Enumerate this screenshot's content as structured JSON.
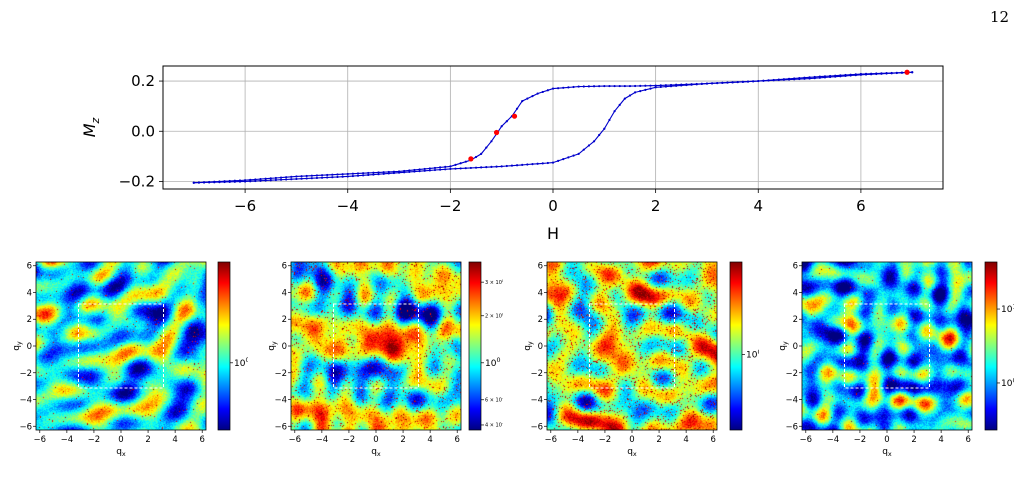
{
  "page": {
    "number": "12"
  },
  "colors": {
    "line": "#0000cc",
    "marker": "#ff0000",
    "grid": "#b0b0b0",
    "dashed_box": "#ffffff"
  },
  "chart_data": [
    {
      "type": "line",
      "title": "",
      "xlabel": "H",
      "ylabel": "M_z",
      "ylabel_main": "M",
      "ylabel_sub": "z",
      "xlim": [
        -7.6,
        7.6
      ],
      "ylim": [
        -0.23,
        0.26
      ],
      "xticks": [
        -6,
        -4,
        -2,
        0,
        2,
        4,
        6
      ],
      "xtick_labels": [
        "−6",
        "−4",
        "−2",
        "0",
        "2",
        "4",
        "6"
      ],
      "yticks": [
        -0.2,
        0.0,
        0.2
      ],
      "ytick_labels": [
        "−0.2",
        "0.0",
        "0.2"
      ],
      "grid": true,
      "series": [
        {
          "branch": "descending",
          "x": [
            7.0,
            6.0,
            5.0,
            4.0,
            3.0,
            2.0,
            1.5,
            1.0,
            0.5,
            0.0,
            -0.3,
            -0.6,
            -0.8,
            -1.0,
            -1.2,
            -1.4,
            -1.6,
            -2.0,
            -3.0,
            -4.0,
            -5.0,
            -6.0,
            -7.0
          ],
          "y": [
            0.235,
            0.228,
            0.215,
            0.2,
            0.19,
            0.182,
            0.18,
            0.18,
            0.178,
            0.17,
            0.15,
            0.12,
            0.06,
            0.02,
            -0.04,
            -0.09,
            -0.115,
            -0.14,
            -0.16,
            -0.17,
            -0.18,
            -0.195,
            -0.205
          ]
        },
        {
          "branch": "ascending",
          "x": [
            -7.0,
            -6.0,
            -5.0,
            -4.0,
            -3.0,
            -2.0,
            -1.0,
            0.0,
            0.5,
            0.8,
            1.0,
            1.2,
            1.4,
            1.6,
            2.0,
            3.0,
            4.0,
            5.0,
            6.0,
            7.0
          ],
          "y": [
            -0.205,
            -0.2,
            -0.19,
            -0.18,
            -0.165,
            -0.15,
            -0.14,
            -0.125,
            -0.09,
            -0.04,
            0.01,
            0.08,
            0.13,
            0.155,
            0.175,
            0.19,
            0.2,
            0.21,
            0.225,
            0.235
          ]
        }
      ],
      "highlight_points": {
        "x": [
          -1.6,
          -1.1,
          -0.75,
          6.9
        ],
        "y": [
          -0.11,
          -0.005,
          0.06,
          0.235
        ]
      }
    },
    {
      "type": "heatmap",
      "xlabel_main": "q",
      "xlabel_sub": "x",
      "ylabel_main": "q",
      "ylabel_sub": "y",
      "xlim": [
        -6.28,
        6.28
      ],
      "ylim": [
        -6.28,
        6.28
      ],
      "ticks": [
        -6,
        -4,
        -2,
        0,
        2,
        4,
        6
      ],
      "tick_labels": [
        "−6",
        "−4",
        "−2",
        "0",
        "2",
        "4",
        "6"
      ],
      "dashed_box": [
        -3.14,
        3.14
      ],
      "colorbar": {
        "scale": "log",
        "labels": [
          {
            "main": "10",
            "exp": "0",
            "at": 0.6
          }
        ]
      },
      "seed": 11,
      "intensity": 0.35,
      "hot_fraction": 0.01
    },
    {
      "type": "heatmap",
      "xlabel_main": "q",
      "xlabel_sub": "x",
      "ylabel_main": "q",
      "ylabel_sub": "y",
      "xlim": [
        -6.28,
        6.28
      ],
      "ylim": [
        -6.28,
        6.28
      ],
      "ticks": [
        -6,
        -4,
        -2,
        0,
        2,
        4,
        6
      ],
      "tick_labels": [
        "−6",
        "−4",
        "−2",
        "0",
        "2",
        "4",
        "6"
      ],
      "dashed_box": [
        -3.14,
        3.14
      ],
      "colorbar": {
        "scale": "log",
        "labels": [
          {
            "main": "3 × 10",
            "exp": "0",
            "at": 0.12,
            "small": true
          },
          {
            "main": "2 × 10",
            "exp": "0",
            "at": 0.32,
            "small": true
          },
          {
            "main": "10",
            "exp": "0",
            "at": 0.6
          },
          {
            "main": "6 × 10",
            "exp": "−1",
            "at": 0.82,
            "small": true
          },
          {
            "main": "4 × 10",
            "exp": "−1",
            "at": 0.97,
            "small": true
          }
        ]
      },
      "seed": 23,
      "intensity": 0.55,
      "hot_fraction": 0.05
    },
    {
      "type": "heatmap",
      "xlabel_main": "q",
      "xlabel_sub": "x",
      "ylabel_main": "q",
      "ylabel_sub": "y",
      "xlim": [
        -6.28,
        6.28
      ],
      "ylim": [
        -6.28,
        6.28
      ],
      "ticks": [
        -6,
        -4,
        -2,
        0,
        2,
        4,
        6
      ],
      "tick_labels": [
        "−6",
        "−4",
        "−2",
        "0",
        "2",
        "4",
        "6"
      ],
      "dashed_box": [
        -3.14,
        3.14
      ],
      "colorbar": {
        "scale": "log",
        "labels": [
          {
            "main": "10",
            "exp": "0",
            "at": 0.55
          }
        ]
      },
      "seed": 37,
      "intensity": 0.62,
      "hot_fraction": 0.07
    },
    {
      "type": "heatmap",
      "xlabel_main": "q",
      "xlabel_sub": "x",
      "ylabel_main": "q",
      "ylabel_sub": "y",
      "xlim": [
        -6.28,
        6.28
      ],
      "ylim": [
        -6.28,
        6.28
      ],
      "ticks": [
        -6,
        -4,
        -2,
        0,
        2,
        4,
        6
      ],
      "tick_labels": [
        "−6",
        "−4",
        "−2",
        "0",
        "2",
        "4",
        "6"
      ],
      "dashed_box": [
        -3.14,
        3.14
      ],
      "colorbar": {
        "scale": "log",
        "labels": [
          {
            "main": "10",
            "exp": "1",
            "at": 0.28
          },
          {
            "main": "10",
            "exp": "0",
            "at": 0.72
          }
        ]
      },
      "seed": 51,
      "intensity": 0.25,
      "hot_fraction": 0.004
    }
  ]
}
